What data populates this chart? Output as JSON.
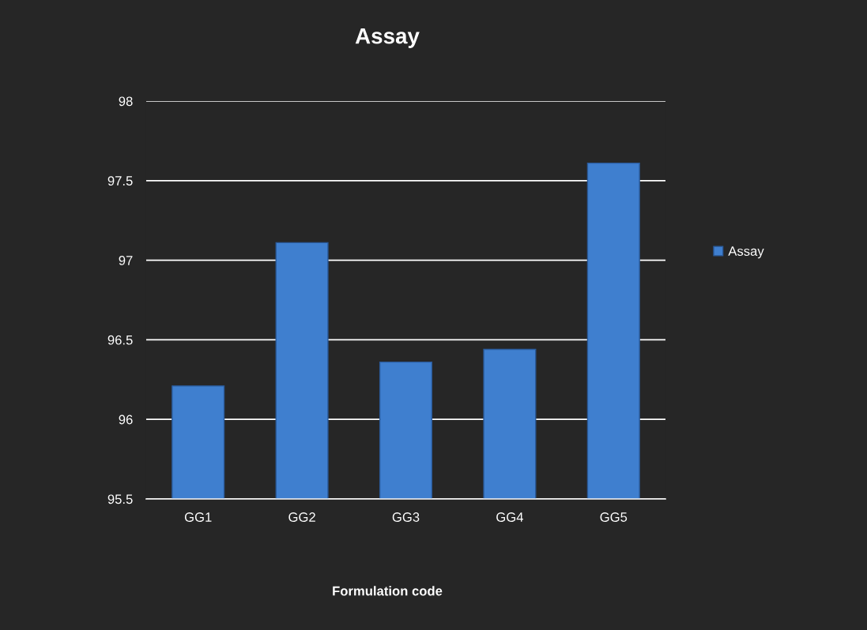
{
  "chart_data": {
    "type": "bar",
    "title": "Assay",
    "xlabel": "Formulation code",
    "categories": [
      "GG1",
      "GG2",
      "GG3",
      "GG4",
      "GG5"
    ],
    "series": [
      {
        "name": "Assay",
        "color": "#3f7fcf",
        "values": [
          96.21,
          97.11,
          96.36,
          96.44,
          97.61
        ]
      }
    ],
    "ylim": [
      95.5,
      98
    ],
    "yticks": [
      95.5,
      96,
      96.5,
      97,
      97.5,
      98
    ],
    "grid": "y",
    "legend": "right"
  }
}
